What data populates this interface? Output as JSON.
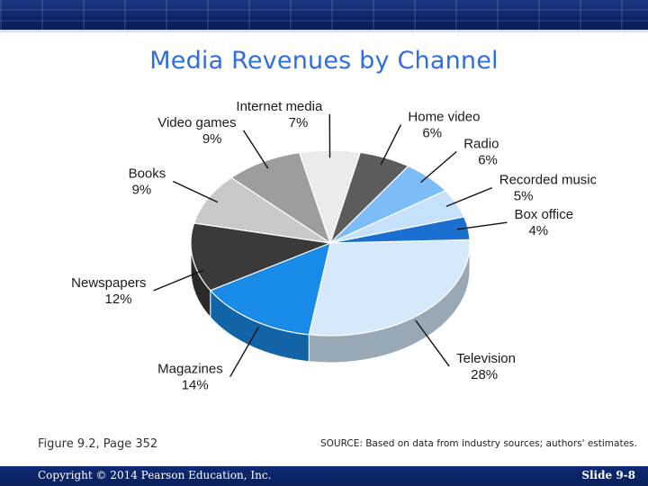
{
  "slide": {
    "title": "Media Revenues by Channel",
    "caption": "Figure 9.2, Page 352",
    "source": "SOURCE: Based on data from industry sources; authors' estimates.",
    "copyright": "Copyright © 2014 Pearson Education, Inc.",
    "slide_number": "Slide 9-8"
  },
  "colors": {
    "banner": "#0d2366",
    "title": "#2f6ee0",
    "footer": "#0e2a73"
  },
  "chart_data": {
    "type": "pie",
    "style": "3d",
    "title": "Media Revenues by Channel",
    "categories": [
      "Television",
      "Magazines",
      "Newspapers",
      "Books",
      "Video games",
      "Internet media",
      "Home video",
      "Radio",
      "Recorded music",
      "Box office"
    ],
    "values": [
      28,
      14,
      12,
      9,
      9,
      7,
      6,
      6,
      5,
      4
    ],
    "value_suffix": "%",
    "colors": [
      "#d5e9fb",
      "#1a8ae8",
      "#3a3a3a",
      "#c9c9c9",
      "#9d9d9d",
      "#ebebeb",
      "#5c5c5c",
      "#7dbdf7",
      "#c6e2fb",
      "#1a6fd1"
    ],
    "start_angle_deg": 358,
    "legend": "none",
    "labels": "outside-with-leader-lines"
  }
}
